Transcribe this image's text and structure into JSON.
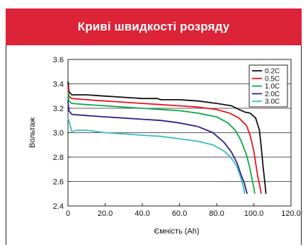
{
  "header": {
    "title": "Криві швидкості розряду"
  },
  "colors": {
    "header_bg": "#dc2337"
  },
  "chart_data": {
    "type": "line",
    "title": "Криві швидкості розряду",
    "xlabel": "Ємність (Ah)",
    "ylabel": "Вольтаж",
    "xlim": [
      0,
      120
    ],
    "ylim": [
      2.4,
      3.6
    ],
    "xticks": [
      0,
      20,
      40,
      60,
      80,
      100,
      120
    ],
    "xtick_labels": [
      "0",
      "20.0",
      "40.0",
      "60.0",
      "80.0",
      "100.0",
      "120.0"
    ],
    "yticks": [
      2.4,
      2.6,
      2.8,
      3.0,
      3.2,
      3.4,
      3.6
    ],
    "ytick_labels": [
      "2.4",
      "2.6",
      "2.8",
      "3.0",
      "3.2",
      "3.4",
      "3.6"
    ],
    "grid": "horizontal",
    "legend_position": "top-right",
    "series": [
      {
        "name": "0.2C",
        "color": "#111111",
        "points": [
          [
            0,
            3.42
          ],
          [
            0.5,
            3.34
          ],
          [
            2,
            3.31
          ],
          [
            10,
            3.31
          ],
          [
            20,
            3.3
          ],
          [
            30,
            3.29
          ],
          [
            40,
            3.28
          ],
          [
            48,
            3.28
          ],
          [
            50,
            3.27
          ],
          [
            60,
            3.27
          ],
          [
            70,
            3.26
          ],
          [
            80,
            3.24
          ],
          [
            88,
            3.22
          ],
          [
            92,
            3.19
          ],
          [
            95,
            3.17
          ],
          [
            98,
            3.16
          ],
          [
            101,
            3.12
          ],
          [
            103,
            3.02
          ],
          [
            104,
            2.88
          ],
          [
            105,
            2.72
          ],
          [
            106,
            2.58
          ],
          [
            106.5,
            2.5
          ]
        ]
      },
      {
        "name": "0.5C",
        "color": "#e8141c",
        "points": [
          [
            0,
            3.38
          ],
          [
            0.5,
            3.3
          ],
          [
            2,
            3.28
          ],
          [
            10,
            3.27
          ],
          [
            20,
            3.26
          ],
          [
            30,
            3.25
          ],
          [
            40,
            3.24
          ],
          [
            50,
            3.23
          ],
          [
            60,
            3.22
          ],
          [
            70,
            3.21
          ],
          [
            80,
            3.19
          ],
          [
            87,
            3.16
          ],
          [
            92,
            3.12
          ],
          [
            96,
            3.06
          ],
          [
            98,
            2.98
          ],
          [
            100,
            2.85
          ],
          [
            101,
            2.75
          ],
          [
            102,
            2.65
          ],
          [
            103,
            2.58
          ],
          [
            104,
            2.5
          ]
        ]
      },
      {
        "name": "1.0C",
        "color": "#0aa84a",
        "points": [
          [
            0,
            3.34
          ],
          [
            0.5,
            3.26
          ],
          [
            2,
            3.24
          ],
          [
            10,
            3.23
          ],
          [
            20,
            3.22
          ],
          [
            30,
            3.21
          ],
          [
            40,
            3.2
          ],
          [
            50,
            3.19
          ],
          [
            60,
            3.18
          ],
          [
            70,
            3.16
          ],
          [
            80,
            3.13
          ],
          [
            86,
            3.08
          ],
          [
            90,
            3.02
          ],
          [
            93,
            2.94
          ],
          [
            96,
            2.82
          ],
          [
            98,
            2.7
          ],
          [
            99,
            2.62
          ],
          [
            100,
            2.55
          ],
          [
            100.5,
            2.5
          ]
        ]
      },
      {
        "name": "2.0C",
        "color": "#2e1e8c",
        "points": [
          [
            0,
            3.26
          ],
          [
            0.5,
            3.18
          ],
          [
            2,
            3.15
          ],
          [
            10,
            3.14
          ],
          [
            20,
            3.13
          ],
          [
            30,
            3.12
          ],
          [
            40,
            3.11
          ],
          [
            50,
            3.1
          ],
          [
            60,
            3.08
          ],
          [
            70,
            3.05
          ],
          [
            78,
            3.0
          ],
          [
            84,
            2.92
          ],
          [
            88,
            2.84
          ],
          [
            91,
            2.75
          ],
          [
            93,
            2.66
          ],
          [
            95,
            2.58
          ],
          [
            96,
            2.52
          ],
          [
            96.5,
            2.5
          ]
        ]
      },
      {
        "name": "3.0C",
        "color": "#3dbcbc",
        "points": [
          [
            0,
            3.12
          ],
          [
            1,
            3.07
          ],
          [
            2,
            3.01
          ],
          [
            5,
            3.02
          ],
          [
            10,
            3.02
          ],
          [
            15,
            3.01
          ],
          [
            20,
            3.0
          ],
          [
            30,
            2.99
          ],
          [
            40,
            2.98
          ],
          [
            50,
            2.97
          ],
          [
            60,
            2.95
          ],
          [
            70,
            2.93
          ],
          [
            78,
            2.9
          ],
          [
            84,
            2.85
          ],
          [
            88,
            2.79
          ],
          [
            91,
            2.72
          ],
          [
            93,
            2.63
          ],
          [
            94.5,
            2.55
          ],
          [
            95,
            2.5
          ]
        ]
      }
    ]
  }
}
